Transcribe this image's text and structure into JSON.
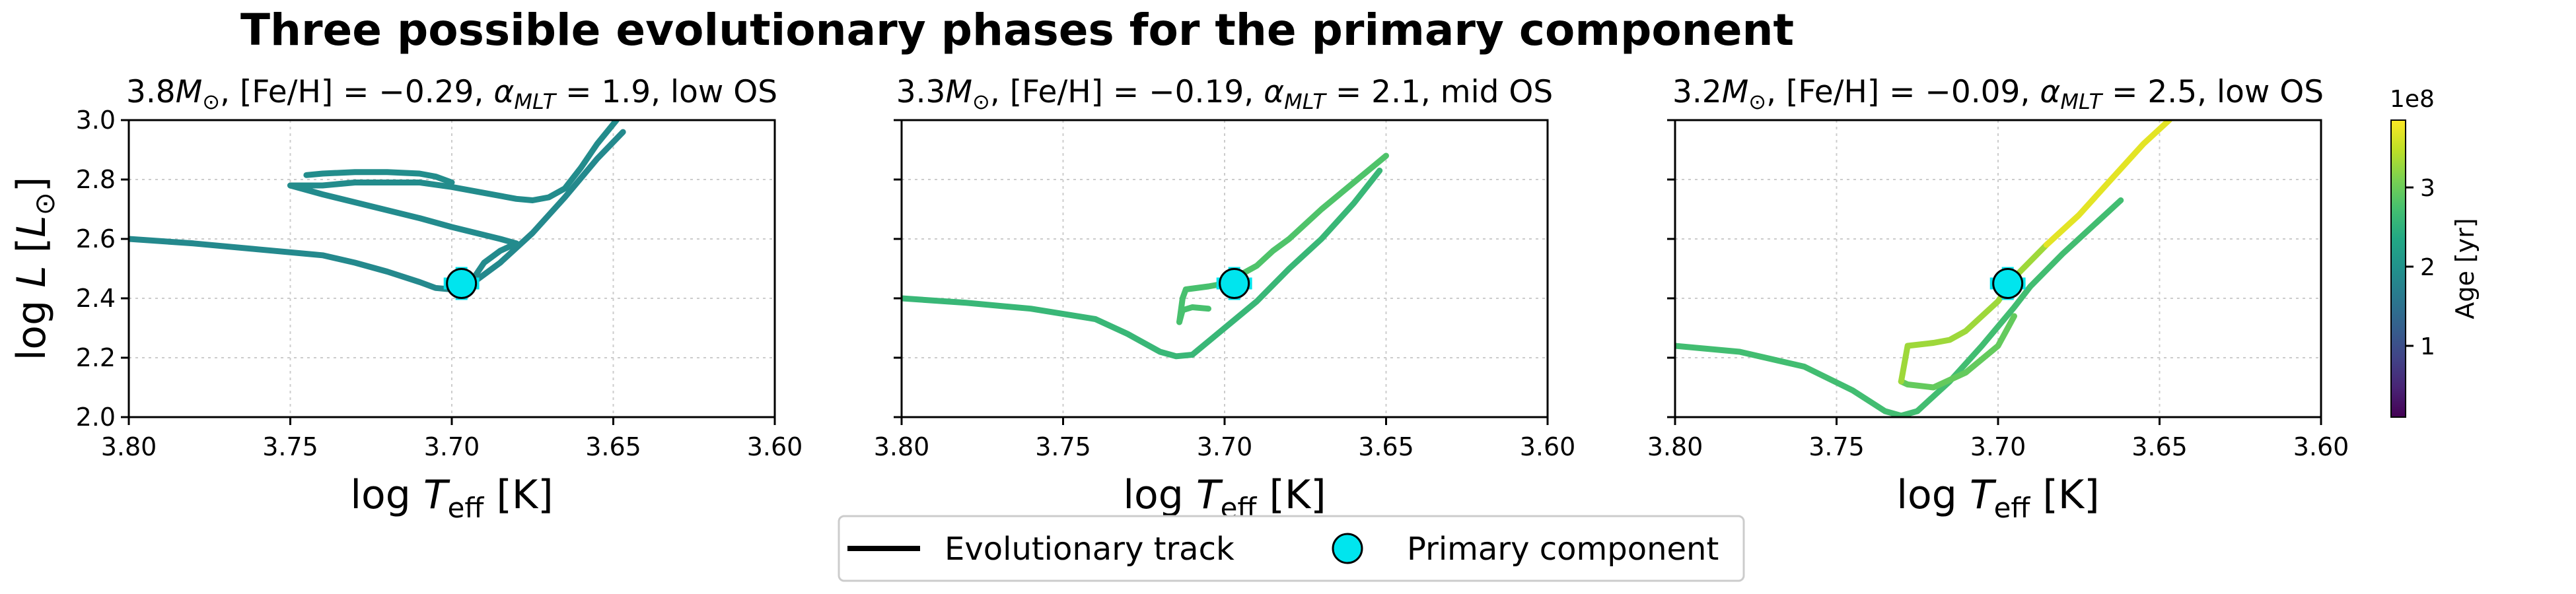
{
  "chart_data": {
    "type": "line",
    "suptitle": "Three possible evolutionary phases for the primary component",
    "xlim": [
      3.8,
      3.6
    ],
    "ylim": [
      2.0,
      3.0
    ],
    "xticks": [
      "3.80",
      "3.75",
      "3.70",
      "3.65",
      "3.60"
    ],
    "yticks": [
      "2.0",
      "2.2",
      "2.4",
      "2.6",
      "2.8",
      "3.0"
    ],
    "xlabel_main": "log T",
    "xlabel_sub": "eff",
    "xlabel_unit": " [K]",
    "ylabel_main": "log L [L",
    "ylabel_sym": "⊙",
    "ylabel_close": "]",
    "grid": true,
    "colorbar": {
      "label": "Age [yr]",
      "offset_text": "1e8",
      "range": [
        0.1,
        3.85
      ],
      "ticks": [
        "1",
        "2",
        "3"
      ],
      "tick_values": [
        1,
        2,
        3
      ],
      "colormap": "viridis"
    },
    "primary": {
      "logTeff": 3.697,
      "logL": 2.45,
      "xerr": 0.005,
      "yerr": 0.05,
      "color": "#00e5ee"
    },
    "legend": {
      "placement": "bottom-center",
      "items": [
        {
          "label": "Evolutionary track",
          "marker": "line"
        },
        {
          "label": "Primary component",
          "marker": "circle"
        }
      ]
    },
    "panels": [
      {
        "title": "3.8M, [Fe/H] = −0.29, α_MLT = 1.9, low OS",
        "title_mass": "3.8",
        "title_rest_a": ", [Fe/H] = −0.29, ",
        "title_alpha": "1.9",
        "title_rest_b": ", low OS",
        "show_yticks": true,
        "segments": [
          {
            "age": 1.85,
            "points": [
              [
                3.8,
                2.6
              ],
              [
                3.78,
                2.585
              ],
              [
                3.76,
                2.565
              ],
              [
                3.74,
                2.545
              ],
              [
                3.73,
                2.52
              ],
              [
                3.72,
                2.49
              ],
              [
                3.71,
                2.455
              ],
              [
                3.705,
                2.435
              ],
              [
                3.7,
                2.43
              ],
              [
                3.695,
                2.44
              ]
            ]
          },
          {
            "age": 1.85,
            "points": [
              [
                3.695,
                2.44
              ],
              [
                3.685,
                2.52
              ],
              [
                3.675,
                2.62
              ],
              [
                3.665,
                2.74
              ],
              [
                3.655,
                2.87
              ],
              [
                3.647,
                2.96
              ]
            ]
          },
          {
            "age": 1.88,
            "points": [
              [
                3.695,
                2.44
              ],
              [
                3.69,
                2.52
              ],
              [
                3.685,
                2.56
              ],
              [
                3.68,
                2.585
              ],
              [
                3.685,
                2.6
              ],
              [
                3.7,
                2.64
              ],
              [
                3.71,
                2.67
              ],
              [
                3.725,
                2.71
              ],
              [
                3.74,
                2.75
              ],
              [
                3.75,
                2.78
              ]
            ]
          },
          {
            "age": 1.9,
            "points": [
              [
                3.75,
                2.78
              ],
              [
                3.74,
                2.78
              ],
              [
                3.73,
                2.79
              ],
              [
                3.72,
                2.79
              ],
              [
                3.71,
                2.79
              ],
              [
                3.7,
                2.775
              ],
              [
                3.69,
                2.755
              ],
              [
                3.68,
                2.735
              ],
              [
                3.675,
                2.73
              ],
              [
                3.67,
                2.74
              ],
              [
                3.665,
                2.77
              ],
              [
                3.66,
                2.84
              ],
              [
                3.655,
                2.92
              ],
              [
                3.649,
                3.0
              ]
            ]
          },
          {
            "age": 1.91,
            "points": [
              [
                3.745,
                2.815
              ],
              [
                3.74,
                2.82
              ],
              [
                3.73,
                2.825
              ],
              [
                3.72,
                2.825
              ],
              [
                3.71,
                2.82
              ],
              [
                3.705,
                2.81
              ],
              [
                3.7,
                2.79
              ]
            ]
          }
        ]
      },
      {
        "title": "3.3M, [Fe/H] = −0.19, α_MLT = 2.1, mid OS",
        "title_mass": "3.3",
        "title_rest_a": ", [Fe/H] = −0.19, ",
        "title_alpha": "2.1",
        "title_rest_b": ", mid OS",
        "show_yticks": false,
        "segments": [
          {
            "age": 2.6,
            "points": [
              [
                3.8,
                2.4
              ],
              [
                3.78,
                2.385
              ],
              [
                3.76,
                2.365
              ],
              [
                3.74,
                2.33
              ],
              [
                3.73,
                2.28
              ],
              [
                3.72,
                2.22
              ],
              [
                3.715,
                2.205
              ],
              [
                3.71,
                2.21
              ]
            ]
          },
          {
            "age": 2.6,
            "points": [
              [
                3.71,
                2.21
              ],
              [
                3.7,
                2.3
              ],
              [
                3.69,
                2.39
              ],
              [
                3.68,
                2.5
              ],
              [
                3.67,
                2.6
              ],
              [
                3.66,
                2.72
              ],
              [
                3.652,
                2.83
              ]
            ]
          },
          {
            "age": 2.75,
            "points": [
              [
                3.714,
                2.32
              ],
              [
                3.713,
                2.4
              ],
              [
                3.712,
                2.43
              ],
              [
                3.705,
                2.44
              ],
              [
                3.7,
                2.45
              ],
              [
                3.695,
                2.46
              ]
            ]
          },
          {
            "age": 2.75,
            "points": [
              [
                3.714,
                2.32
              ],
              [
                3.713,
                2.36
              ],
              [
                3.71,
                2.37
              ],
              [
                3.705,
                2.365
              ]
            ]
          },
          {
            "age": 2.8,
            "points": [
              [
                3.7,
                2.45
              ],
              [
                3.695,
                2.48
              ],
              [
                3.69,
                2.51
              ],
              [
                3.685,
                2.56
              ],
              [
                3.68,
                2.6
              ],
              [
                3.67,
                2.7
              ],
              [
                3.66,
                2.79
              ],
              [
                3.65,
                2.88
              ]
            ]
          }
        ]
      },
      {
        "title": "3.2M, [Fe/H] = −0.09, α_MLT = 2.5, low OS",
        "title_mass": "3.2",
        "title_rest_a": ", [Fe/H] = −0.09, ",
        "title_alpha": "2.5",
        "title_rest_b": ", low OS",
        "show_yticks": false,
        "segments": [
          {
            "age": 2.7,
            "points": [
              [
                3.8,
                2.24
              ],
              [
                3.78,
                2.22
              ],
              [
                3.76,
                2.17
              ],
              [
                3.745,
                2.09
              ],
              [
                3.735,
                2.02
              ],
              [
                3.73,
                2.005
              ],
              [
                3.725,
                2.02
              ]
            ]
          },
          {
            "age": 2.7,
            "points": [
              [
                3.725,
                2.02
              ],
              [
                3.715,
                2.12
              ],
              [
                3.705,
                2.24
              ],
              [
                3.695,
                2.37
              ],
              [
                3.69,
                2.44
              ],
              [
                3.68,
                2.55
              ],
              [
                3.67,
                2.65
              ],
              [
                3.662,
                2.73
              ]
            ]
          },
          {
            "age": 2.95,
            "points": [
              [
                3.73,
                2.12
              ],
              [
                3.728,
                2.11
              ],
              [
                3.72,
                2.1
              ],
              [
                3.71,
                2.15
              ],
              [
                3.7,
                2.24
              ],
              [
                3.695,
                2.34
              ]
            ]
          },
          {
            "age": 3.3,
            "points": [
              [
                3.73,
                2.12
              ],
              [
                3.728,
                2.24
              ],
              [
                3.72,
                2.25
              ],
              [
                3.715,
                2.26
              ],
              [
                3.71,
                2.29
              ],
              [
                3.7,
                2.39
              ],
              [
                3.695,
                2.47
              ],
              [
                3.685,
                2.58
              ]
            ]
          },
          {
            "age": 3.7,
            "points": [
              [
                3.685,
                2.58
              ],
              [
                3.675,
                2.68
              ],
              [
                3.665,
                2.8
              ],
              [
                3.655,
                2.92
              ],
              [
                3.647,
                3.0
              ]
            ]
          }
        ]
      }
    ]
  }
}
